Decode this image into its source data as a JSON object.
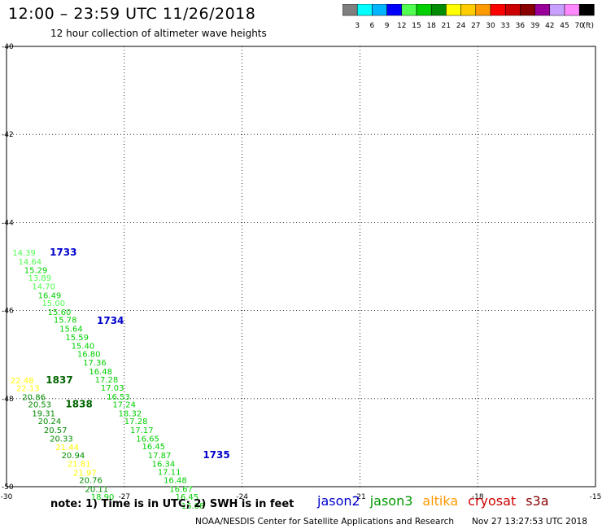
{
  "header": {
    "title": "12:00 – 23:59 UTC 11/26/2018",
    "subtitle": "12 hour collection of altimeter wave heights"
  },
  "legend": {
    "ticks": [
      "3",
      "6",
      "9",
      "12",
      "15",
      "18",
      "21",
      "24",
      "27",
      "30",
      "33",
      "36",
      "39",
      "42",
      "45",
      "70"
    ],
    "unit": "(ft)",
    "colors": [
      "#7f7f7f",
      "#00ffff",
      "#00b4ff",
      "#0000ff",
      "#50ff50",
      "#00d000",
      "#008c00",
      "#ffff00",
      "#ffcc00",
      "#ff9900",
      "#ff0000",
      "#cc0000",
      "#880000",
      "#990099",
      "#c8a0ff",
      "#ff88ff",
      "#000000"
    ]
  },
  "footer": {
    "note": "note: 1) Time is in UTC; 2) SWH is in feet",
    "satellites": [
      {
        "name": "jason2",
        "color": "#0000cc"
      },
      {
        "name": "jason3",
        "color": "#009900"
      },
      {
        "name": "altika",
        "color": "#ff9900"
      },
      {
        "name": "cryosat",
        "color": "#cc0000"
      },
      {
        "name": "s3a",
        "color": "#880000"
      }
    ],
    "credit": "NOAA/NESDIS Center for Satellite Applications and Research",
    "timestamp": "Nov 27 13:27:53 UTC 2018"
  },
  "chart_data": {
    "type": "scatter",
    "title": "12:00 – 23:59 UTC 11/26/2018",
    "subtitle": "12 hour collection of altimeter wave heights",
    "xlim": [
      -30,
      -15
    ],
    "ylim": [
      -50,
      -40
    ],
    "x_ticks": [
      "-30",
      "-27",
      "-24",
      "-21",
      "-18",
      "-15"
    ],
    "y_ticks": [
      "-40",
      "-42",
      "-44",
      "-46",
      "-48",
      "-50"
    ],
    "grid": true,
    "time_labels": [
      {
        "text": "1733",
        "lon": -28.9,
        "lat": -44.75,
        "color": "#0000cc"
      },
      {
        "text": "1734",
        "lon": -27.7,
        "lat": -46.3,
        "color": "#0000cc"
      },
      {
        "text": "1837",
        "lon": -29.0,
        "lat": -47.65,
        "color": "#006600"
      },
      {
        "text": "1838",
        "lon": -28.5,
        "lat": -48.2,
        "color": "#006600"
      },
      {
        "text": "1735",
        "lon": -25.0,
        "lat": -49.35,
        "color": "#0000cc"
      }
    ],
    "points": [
      {
        "v": "14.39",
        "lon": -29.85,
        "lat": -44.75,
        "color": "#50ff50"
      },
      {
        "v": "14.64",
        "lon": -29.7,
        "lat": -44.95,
        "color": "#50ff50"
      },
      {
        "v": "15.29",
        "lon": -29.55,
        "lat": -45.15,
        "color": "#00d000"
      },
      {
        "v": "13.89",
        "lon": -29.45,
        "lat": -45.32,
        "color": "#50ff50"
      },
      {
        "v": "14.70",
        "lon": -29.35,
        "lat": -45.52,
        "color": "#50ff50"
      },
      {
        "v": "16.49",
        "lon": -29.2,
        "lat": -45.72,
        "color": "#00d000"
      },
      {
        "v": "15.00",
        "lon": -29.1,
        "lat": -45.9,
        "color": "#50ff50"
      },
      {
        "v": "15.60",
        "lon": -28.95,
        "lat": -46.1,
        "color": "#00d000"
      },
      {
        "v": "15.78",
        "lon": -28.8,
        "lat": -46.28,
        "color": "#00d000"
      },
      {
        "v": "15.64",
        "lon": -28.65,
        "lat": -46.48,
        "color": "#00d000"
      },
      {
        "v": "15.59",
        "lon": -28.5,
        "lat": -46.67,
        "color": "#00d000"
      },
      {
        "v": "15.40",
        "lon": -28.35,
        "lat": -46.87,
        "color": "#00d000"
      },
      {
        "v": "16.80",
        "lon": -28.2,
        "lat": -47.05,
        "color": "#00d000"
      },
      {
        "v": "17.36",
        "lon": -28.05,
        "lat": -47.25,
        "color": "#00d000"
      },
      {
        "v": "16.48",
        "lon": -27.9,
        "lat": -47.45,
        "color": "#00d000"
      },
      {
        "v": "17.28",
        "lon": -27.75,
        "lat": -47.63,
        "color": "#00d000"
      },
      {
        "v": "17.03",
        "lon": -27.6,
        "lat": -47.82,
        "color": "#00d000"
      },
      {
        "v": "16.53",
        "lon": -27.45,
        "lat": -48.02,
        "color": "#00d000"
      },
      {
        "v": "17.24",
        "lon": -27.3,
        "lat": -48.2,
        "color": "#00d000"
      },
      {
        "v": "18.32",
        "lon": -27.15,
        "lat": -48.4,
        "color": "#00d000"
      },
      {
        "v": "17.28",
        "lon": -27.0,
        "lat": -48.58,
        "color": "#00d000"
      },
      {
        "v": "17.17",
        "lon": -26.85,
        "lat": -48.78,
        "color": "#00d000"
      },
      {
        "v": "16.65",
        "lon": -26.7,
        "lat": -48.97,
        "color": "#00d000"
      },
      {
        "v": "16.45",
        "lon": -26.55,
        "lat": -49.15,
        "color": "#00d000"
      },
      {
        "v": "17.87",
        "lon": -26.4,
        "lat": -49.35,
        "color": "#00d000"
      },
      {
        "v": "16.34",
        "lon": -26.3,
        "lat": -49.55,
        "color": "#00d000"
      },
      {
        "v": "17.11",
        "lon": -26.15,
        "lat": -49.73,
        "color": "#00d000"
      },
      {
        "v": "16.48",
        "lon": -26.0,
        "lat": -49.92,
        "color": "#00d000"
      },
      {
        "v": "16.67",
        "lon": -25.85,
        "lat": -50.12,
        "color": "#00d000"
      },
      {
        "v": "16.45",
        "lon": -25.7,
        "lat": -50.3,
        "color": "#00d000"
      },
      {
        "v": "16.08",
        "lon": -25.55,
        "lat": -50.5,
        "color": "#00d000"
      },
      {
        "v": "22.48",
        "lon": -29.9,
        "lat": -47.65,
        "color": "#ffff00"
      },
      {
        "v": "22.13",
        "lon": -29.75,
        "lat": -47.83,
        "color": "#ffff00"
      },
      {
        "v": "20.86",
        "lon": -29.6,
        "lat": -48.03,
        "color": "#008c00"
      },
      {
        "v": "20.53",
        "lon": -29.45,
        "lat": -48.2,
        "color": "#008c00"
      },
      {
        "v": "19.31",
        "lon": -29.35,
        "lat": -48.4,
        "color": "#008c00"
      },
      {
        "v": "20.24",
        "lon": -29.2,
        "lat": -48.58,
        "color": "#008c00"
      },
      {
        "v": "20.57",
        "lon": -29.05,
        "lat": -48.78,
        "color": "#008c00"
      },
      {
        "v": "20.33",
        "lon": -28.9,
        "lat": -48.97,
        "color": "#008c00"
      },
      {
        "v": "21.44",
        "lon": -28.75,
        "lat": -49.17,
        "color": "#ffff00"
      },
      {
        "v": "20.94",
        "lon": -28.6,
        "lat": -49.35,
        "color": "#008c00"
      },
      {
        "v": "21.81",
        "lon": -28.45,
        "lat": -49.55,
        "color": "#ffff00"
      },
      {
        "v": "21.97",
        "lon": -28.3,
        "lat": -49.75,
        "color": "#ffff00"
      },
      {
        "v": "20.76",
        "lon": -28.15,
        "lat": -49.92,
        "color": "#008c00"
      },
      {
        "v": "20.11",
        "lon": -28.0,
        "lat": -50.12,
        "color": "#008c00"
      },
      {
        "v": "18.90",
        "lon": -27.85,
        "lat": -50.3,
        "color": "#00d000"
      }
    ]
  }
}
